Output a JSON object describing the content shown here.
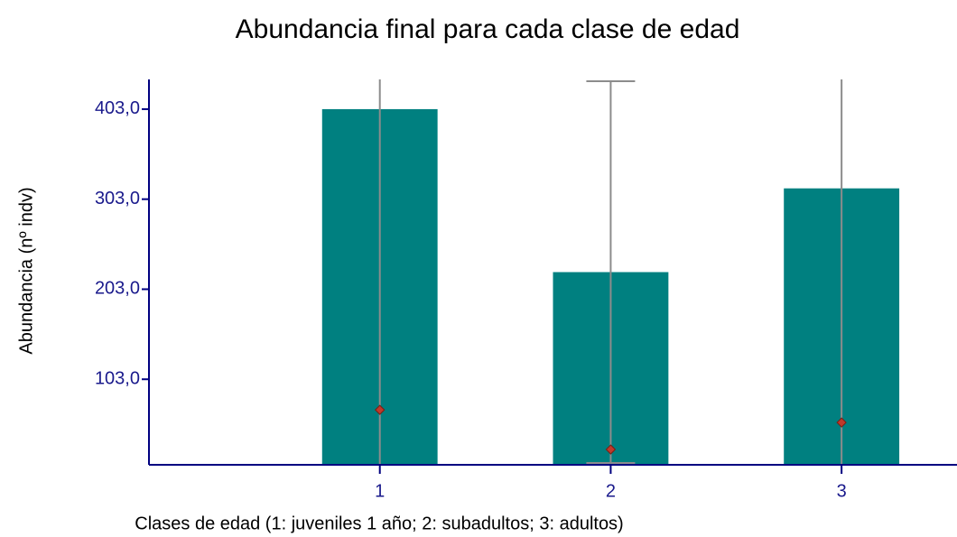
{
  "chart_data": {
    "type": "bar",
    "title": "Abundancia final para cada clase de edad",
    "x_label": "Clases de edad (1: juveniles 1 año; 2: subadultos; 3: adultos)",
    "y_label": "Abundancia (nº indv)",
    "x": [
      1,
      2,
      3
    ],
    "values": [
      403,
      222,
      315
    ],
    "errors": [
      420,
      212,
      330
    ],
    "color": "#008080",
    "markers": {
      "values": [
        69,
        25,
        55
      ],
      "color": "#c0392b"
    },
    "xlim": [
      0,
      3.5
    ],
    "xticks": [
      1,
      2,
      3
    ],
    "ylim": [
      8,
      436
    ],
    "yticks": [
      {
        "value": 103,
        "label": "103,0"
      },
      {
        "value": 203,
        "label": "203,0"
      },
      {
        "value": 303,
        "label": "303,0"
      },
      {
        "value": 403,
        "label": "403,0"
      }
    ],
    "grid": false
  }
}
